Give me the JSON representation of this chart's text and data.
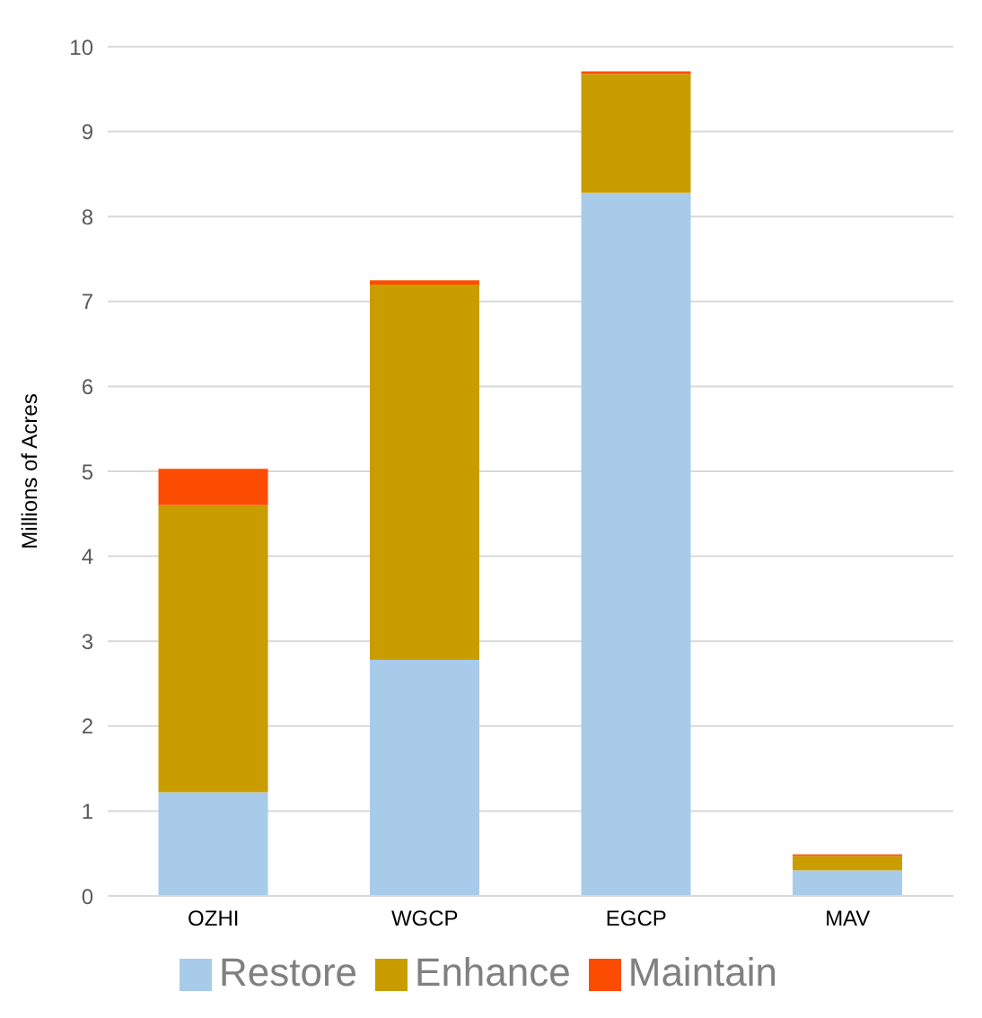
{
  "chart_data": {
    "type": "bar",
    "stacked": true,
    "ylabel": "Millions of Acres",
    "categories": [
      "OZHI",
      "WGCP",
      "EGCP",
      "MAV"
    ],
    "series": [
      {
        "name": "Restore",
        "color": "#a9cbea",
        "values": [
          1.22,
          2.78,
          8.28,
          0.3
        ]
      },
      {
        "name": "Enhance",
        "color": "#c99d00",
        "values": [
          3.38,
          4.42,
          1.4,
          0.17
        ]
      },
      {
        "name": "Maintain",
        "color": "#fc4c02",
        "values": [
          0.43,
          0.05,
          0.03,
          0.02
        ]
      }
    ],
    "ylim": [
      0,
      10
    ],
    "yticks": [
      0,
      1,
      2,
      3,
      4,
      5,
      6,
      7,
      8,
      9,
      10
    ],
    "grid": "y",
    "legend": "bottom"
  }
}
